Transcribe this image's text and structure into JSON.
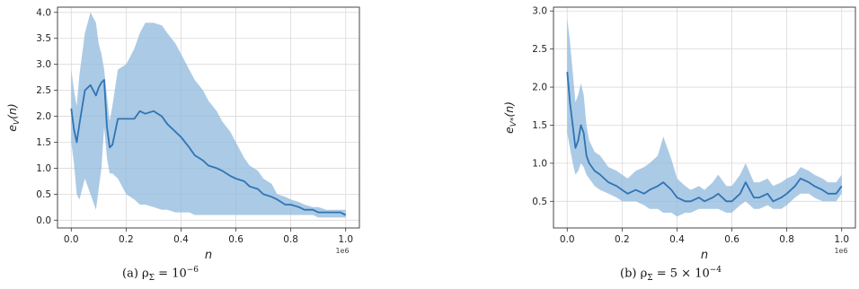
{
  "chart_data": [
    {
      "type": "line",
      "panel_label": "(a)",
      "caption": "(a) ρ_Σ = 10^−6",
      "caption_parts": {
        "prefix": "(a) ρ",
        "sub": "Σ",
        "middle": " = 10",
        "sup": "−6"
      },
      "xlabel": "n",
      "ylabel": "e_V(n)",
      "ylabel_parts": {
        "base": "e",
        "sub": "V",
        "tail": "(n)"
      },
      "x_offset_label": "1e6",
      "xlim": [
        -0.05,
        1.05
      ],
      "ylim": [
        -0.15,
        4.1
      ],
      "xticks": [
        0.0,
        0.2,
        0.4,
        0.6,
        0.8,
        1.0
      ],
      "xtick_labels": [
        "0.0",
        "0.2",
        "0.4",
        "0.6",
        "0.8",
        "1.0"
      ],
      "yticks": [
        0.0,
        0.5,
        1.0,
        1.5,
        2.0,
        2.5,
        3.0,
        3.5,
        4.0
      ],
      "ytick_labels": [
        "0.0",
        "0.5",
        "1.0",
        "1.5",
        "2.0",
        "2.5",
        "3.0",
        "3.5",
        "4.0"
      ],
      "grid": true,
      "line_color": "#2f74b5",
      "band_color": "#8fb8dc",
      "series": [
        {
          "x": [
            0.0,
            0.01,
            0.02,
            0.03,
            0.05,
            0.07,
            0.09,
            0.1,
            0.11,
            0.12,
            0.13,
            0.14,
            0.15,
            0.17,
            0.2,
            0.23,
            0.25,
            0.27,
            0.3,
            0.33,
            0.35,
            0.38,
            0.4,
            0.43,
            0.45,
            0.48,
            0.5,
            0.53,
            0.55,
            0.58,
            0.6,
            0.63,
            0.65,
            0.68,
            0.7,
            0.73,
            0.75,
            0.78,
            0.8,
            0.83,
            0.85,
            0.88,
            0.9,
            0.93,
            0.95,
            0.98,
            1.0
          ],
          "mean": [
            2.15,
            1.75,
            1.5,
            1.85,
            2.5,
            2.6,
            2.4,
            2.55,
            2.65,
            2.7,
            1.8,
            1.4,
            1.45,
            1.95,
            1.95,
            1.95,
            2.1,
            2.05,
            2.1,
            2.0,
            1.85,
            1.7,
            1.6,
            1.4,
            1.25,
            1.15,
            1.05,
            1.0,
            0.95,
            0.85,
            0.8,
            0.75,
            0.65,
            0.6,
            0.5,
            0.45,
            0.4,
            0.3,
            0.3,
            0.25,
            0.2,
            0.2,
            0.15,
            0.15,
            0.15,
            0.15,
            0.1
          ],
          "lower": [
            1.5,
            1.1,
            0.5,
            0.4,
            0.8,
            0.5,
            0.2,
            0.6,
            1.0,
            1.8,
            1.2,
            0.9,
            0.9,
            0.8,
            0.5,
            0.4,
            0.3,
            0.3,
            0.25,
            0.2,
            0.2,
            0.15,
            0.15,
            0.15,
            0.1,
            0.1,
            0.1,
            0.1,
            0.1,
            0.1,
            0.1,
            0.1,
            0.1,
            0.1,
            0.1,
            0.1,
            0.1,
            0.1,
            0.1,
            0.1,
            0.1,
            0.1,
            0.05,
            0.05,
            0.05,
            0.05,
            0.05
          ],
          "upper": [
            2.9,
            2.5,
            2.2,
            2.8,
            3.6,
            4.0,
            3.8,
            3.4,
            3.2,
            2.9,
            2.4,
            1.9,
            2.2,
            2.9,
            3.0,
            3.3,
            3.6,
            3.8,
            3.8,
            3.75,
            3.6,
            3.4,
            3.2,
            2.9,
            2.7,
            2.5,
            2.3,
            2.1,
            1.9,
            1.7,
            1.5,
            1.2,
            1.05,
            0.95,
            0.8,
            0.7,
            0.5,
            0.45,
            0.4,
            0.35,
            0.3,
            0.25,
            0.25,
            0.2,
            0.2,
            0.2,
            0.2
          ]
        }
      ]
    },
    {
      "type": "line",
      "panel_label": "(b)",
      "caption": "(b) ρ_Σ = 5 × 10^−4",
      "caption_parts": {
        "prefix": "(b) ρ",
        "sub": "Σ",
        "middle": " = 5 × 10",
        "sup": "−4"
      },
      "xlabel": "n",
      "ylabel": "e_V*(n)",
      "ylabel_parts": {
        "base": "e",
        "sub": "V*",
        "tail": "(n)"
      },
      "x_offset_label": "1e6",
      "xlim": [
        -0.05,
        1.05
      ],
      "ylim": [
        0.15,
        3.05
      ],
      "xticks": [
        0.0,
        0.2,
        0.4,
        0.6,
        0.8,
        1.0
      ],
      "xtick_labels": [
        "0.0",
        "0.2",
        "0.4",
        "0.6",
        "0.8",
        "1.0"
      ],
      "yticks": [
        0.5,
        1.0,
        1.5,
        2.0,
        2.5,
        3.0
      ],
      "ytick_labels": [
        "0.5",
        "1.0",
        "1.5",
        "2.0",
        "2.5",
        "3.0"
      ],
      "grid": true,
      "line_color": "#2f74b5",
      "band_color": "#8fb8dc",
      "series": [
        {
          "x": [
            0.0,
            0.01,
            0.02,
            0.03,
            0.04,
            0.05,
            0.06,
            0.07,
            0.08,
            0.1,
            0.12,
            0.15,
            0.18,
            0.2,
            0.22,
            0.25,
            0.28,
            0.3,
            0.33,
            0.35,
            0.38,
            0.4,
            0.43,
            0.45,
            0.48,
            0.5,
            0.53,
            0.55,
            0.58,
            0.6,
            0.63,
            0.65,
            0.68,
            0.7,
            0.73,
            0.75,
            0.78,
            0.8,
            0.83,
            0.85,
            0.88,
            0.9,
            0.93,
            0.95,
            0.98,
            1.0
          ],
          "mean": [
            2.2,
            1.8,
            1.5,
            1.2,
            1.3,
            1.5,
            1.4,
            1.1,
            1.0,
            0.9,
            0.85,
            0.75,
            0.7,
            0.65,
            0.6,
            0.65,
            0.6,
            0.65,
            0.7,
            0.75,
            0.65,
            0.55,
            0.5,
            0.5,
            0.55,
            0.5,
            0.55,
            0.6,
            0.5,
            0.5,
            0.6,
            0.75,
            0.55,
            0.55,
            0.6,
            0.5,
            0.55,
            0.6,
            0.7,
            0.8,
            0.75,
            0.7,
            0.65,
            0.6,
            0.6,
            0.7
          ],
          "lower": [
            1.4,
            1.2,
            1.0,
            0.85,
            0.9,
            1.0,
            0.95,
            0.85,
            0.8,
            0.7,
            0.65,
            0.6,
            0.55,
            0.5,
            0.5,
            0.5,
            0.45,
            0.4,
            0.4,
            0.35,
            0.35,
            0.3,
            0.35,
            0.35,
            0.4,
            0.4,
            0.4,
            0.4,
            0.35,
            0.35,
            0.45,
            0.5,
            0.4,
            0.4,
            0.45,
            0.4,
            0.4,
            0.45,
            0.55,
            0.6,
            0.6,
            0.55,
            0.5,
            0.5,
            0.5,
            0.6
          ],
          "upper": [
            2.9,
            2.6,
            2.2,
            1.8,
            1.9,
            2.05,
            1.9,
            1.5,
            1.3,
            1.15,
            1.1,
            0.95,
            0.9,
            0.85,
            0.8,
            0.9,
            0.95,
            1.0,
            1.1,
            1.35,
            1.05,
            0.8,
            0.7,
            0.65,
            0.7,
            0.65,
            0.75,
            0.85,
            0.7,
            0.7,
            0.85,
            1.0,
            0.75,
            0.75,
            0.8,
            0.7,
            0.75,
            0.8,
            0.85,
            0.95,
            0.9,
            0.85,
            0.8,
            0.75,
            0.75,
            0.85
          ]
        }
      ]
    }
  ]
}
